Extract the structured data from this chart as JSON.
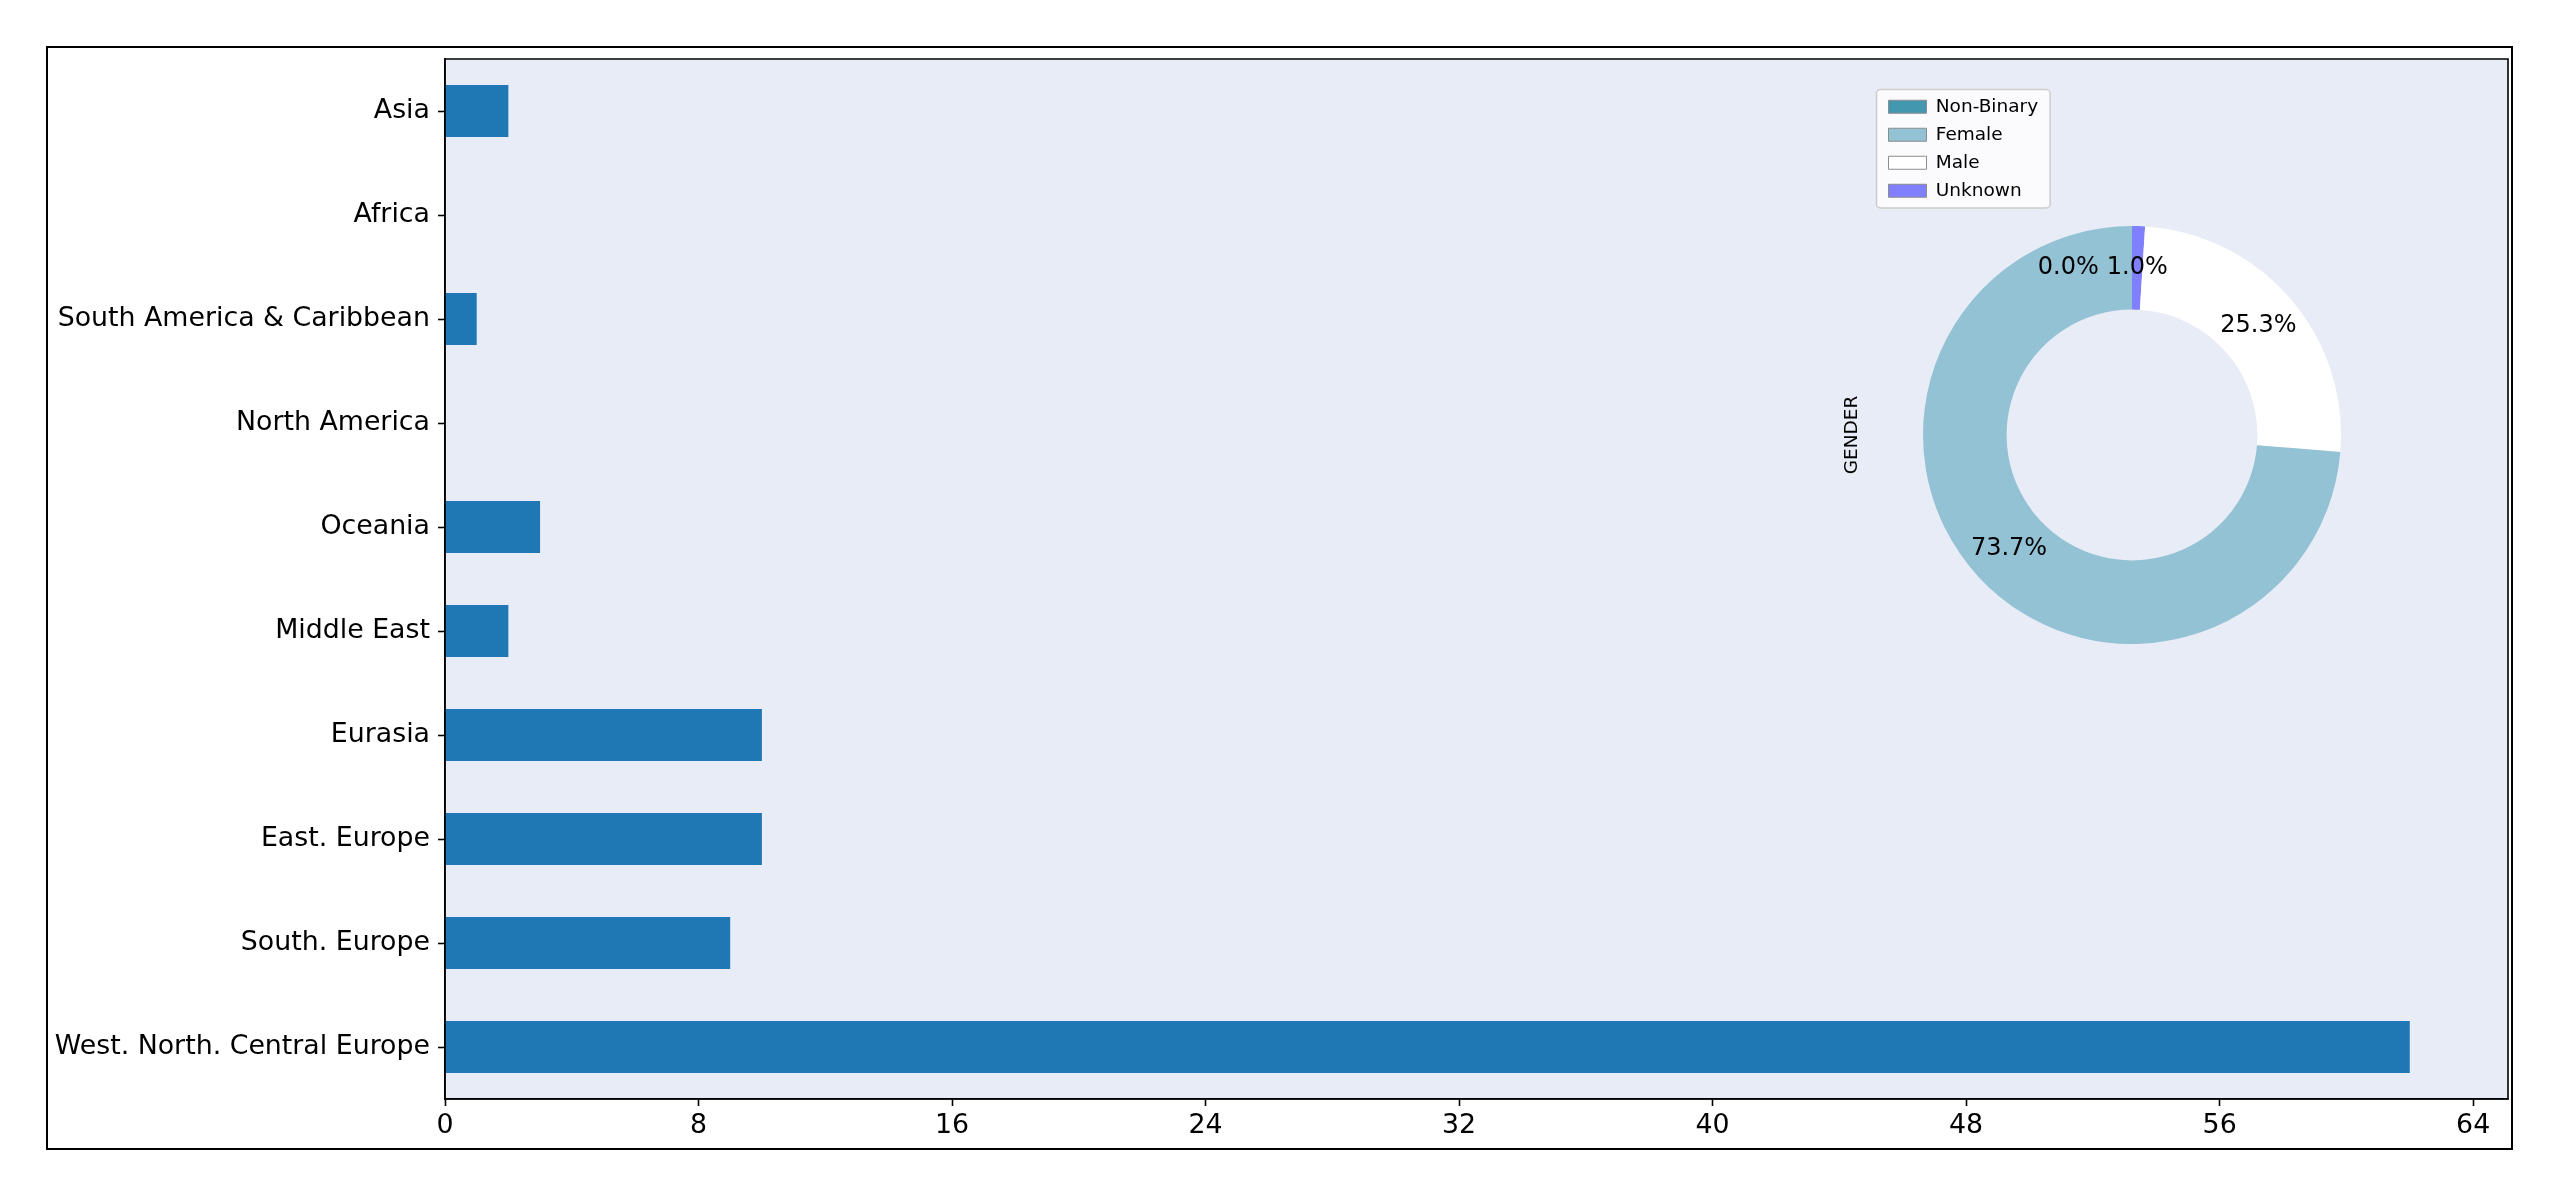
{
  "chart_data": [
    {
      "type": "bar",
      "orientation": "horizontal",
      "categories": [
        "Asia",
        "Africa",
        "South America & Caribbean",
        "North America",
        "Oceania",
        "Middle East",
        "Eurasia",
        "East. Europe",
        "South. Europe",
        "West. North. Central Europe"
      ],
      "values": [
        2,
        0,
        1,
        0,
        3,
        2,
        10,
        10,
        9,
        62
      ],
      "color": "#1f77b4",
      "xlim": [
        0,
        65.1
      ],
      "xticks": [
        0,
        8,
        16,
        24,
        32,
        40,
        48,
        56,
        64
      ]
    },
    {
      "type": "donut",
      "ylabel": "GENDER",
      "categories": [
        "Non-Binary",
        "Female",
        "Male",
        "Unknown"
      ],
      "values": [
        0.0,
        73.7,
        25.3,
        1.0
      ],
      "colors": [
        "#4398b0",
        "#93c2d4",
        "#ffffff",
        "#8080ff"
      ],
      "value_labels": [
        "0.0%",
        "73.7%",
        "25.3%",
        "1.0%"
      ],
      "legend": "top left"
    }
  ]
}
